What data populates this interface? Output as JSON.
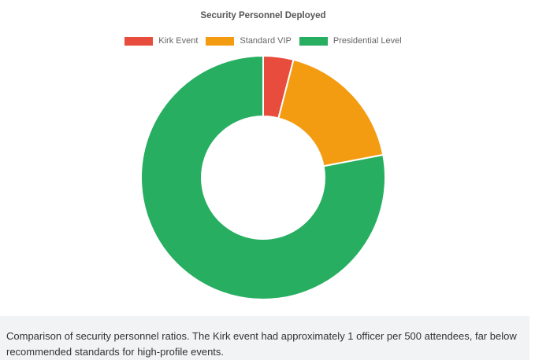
{
  "chart_data": {
    "type": "pie",
    "variant": "doughnut",
    "title": "Security Personnel Deployed",
    "categories": [
      "Kirk Event",
      "Standard VIP",
      "Presidential Level"
    ],
    "values": [
      4,
      18,
      78
    ],
    "colors": [
      "#e74c3c",
      "#f39c12",
      "#27ae60"
    ],
    "legend_position": "top"
  },
  "caption": "Comparison of security personnel ratios. The Kirk event had approximately 1 officer per 500 attendees, far below recommended standards for high-profile events."
}
